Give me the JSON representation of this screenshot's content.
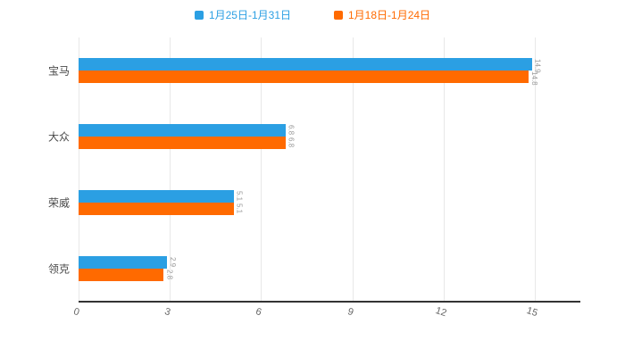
{
  "chart_data": {
    "type": "bar",
    "orientation": "horizontal",
    "title": "",
    "xlabel": "",
    "ylabel": "",
    "categories": [
      "宝马",
      "大众",
      "荣威",
      "领克"
    ],
    "series": [
      {
        "name": "1月25日-1月31日",
        "color": "#2B9FE3",
        "values": [
          14.9,
          6.8,
          5.1,
          2.9
        ]
      },
      {
        "name": "1月18日-1月24日",
        "color": "#FF6A00",
        "values": [
          14.8,
          6.8,
          5.1,
          2.8
        ]
      }
    ],
    "x_ticks": [
      0,
      3,
      6,
      9,
      12,
      15
    ],
    "xlim": [
      0,
      16.5
    ],
    "grid": true,
    "legend_position": "top",
    "value_labels": "rotated-90-at-bar-end"
  },
  "colors": {
    "background": "#ffffff",
    "gridline": "#e8e8e8",
    "axis_line": "#333333",
    "tick_text": "#666666",
    "category_text": "#4a4a4a",
    "value_label_text": "#999999"
  }
}
